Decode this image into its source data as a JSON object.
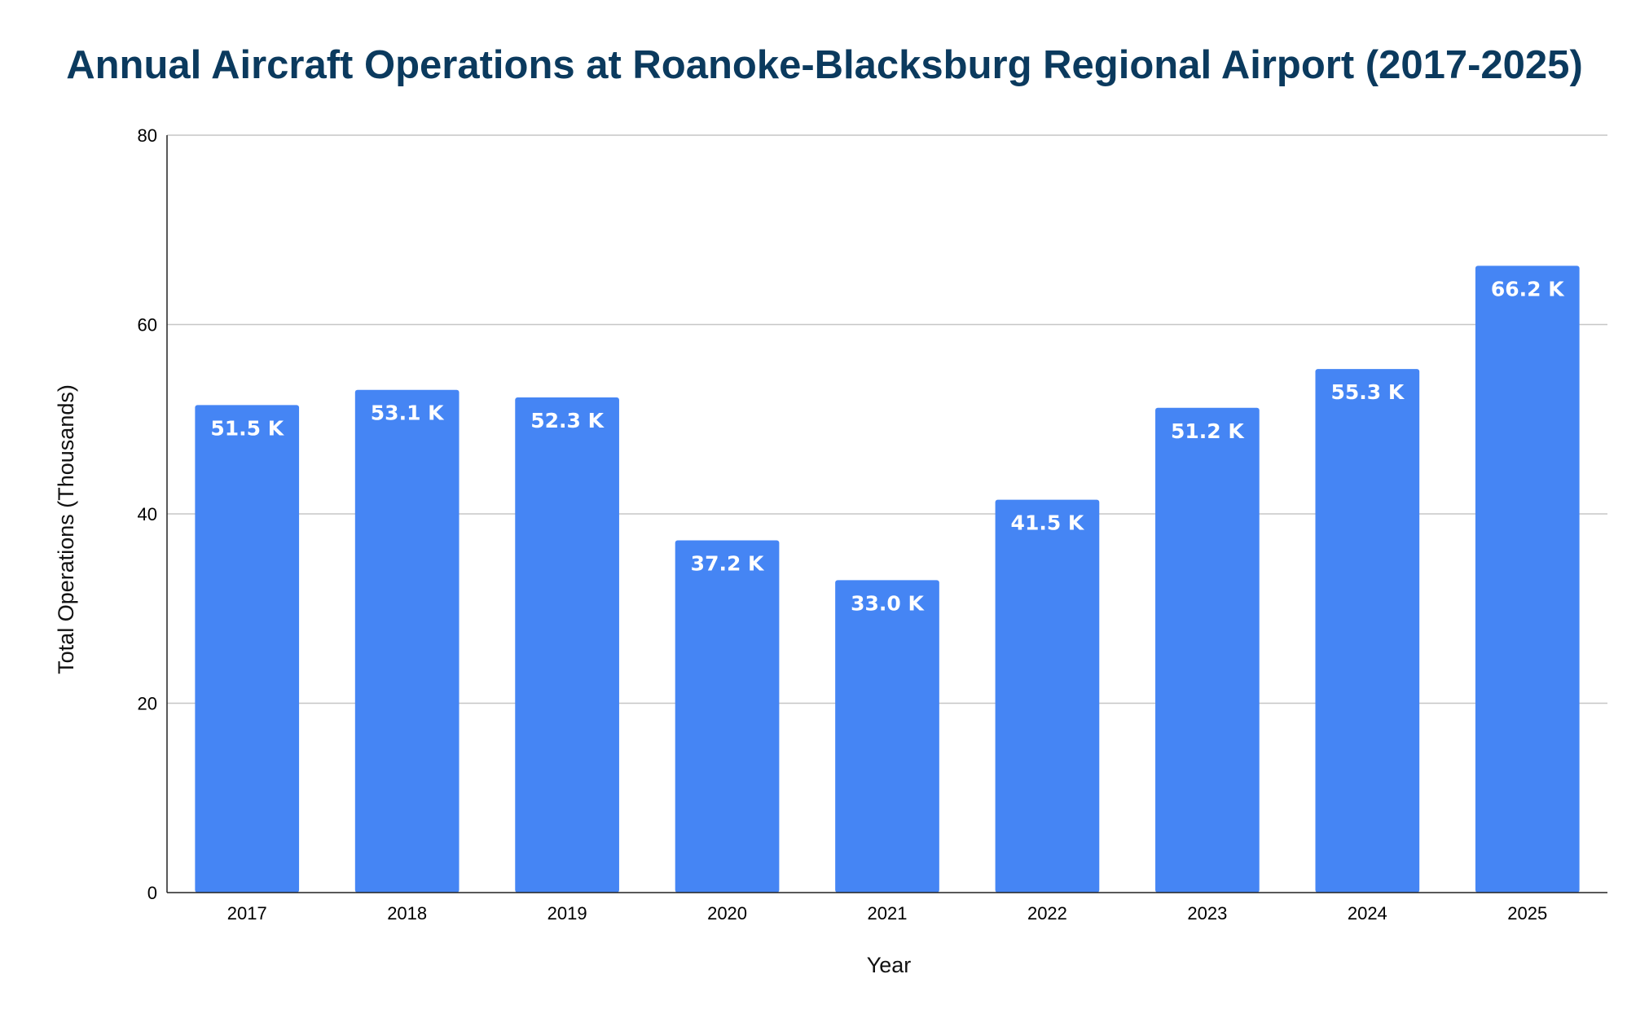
{
  "chart_data": {
    "type": "bar",
    "title": "Annual Aircraft Operations at Roanoke-Blacksburg Regional Airport (2017-2025)",
    "xlabel": "Year",
    "ylabel": "Total Operations (Thousands)",
    "categories": [
      "2017",
      "2018",
      "2019",
      "2020",
      "2021",
      "2022",
      "2023",
      "2024",
      "2025"
    ],
    "values": [
      51.5,
      53.1,
      52.3,
      37.2,
      33.0,
      41.5,
      51.2,
      55.3,
      66.2
    ],
    "data_labels": [
      "51.5 K",
      "53.1 K",
      "52.3 K",
      "37.2 K",
      "33.0 K",
      "41.5 K",
      "51.2 K",
      "55.3 K",
      "66.2 K"
    ],
    "ylim": [
      0,
      80
    ],
    "yticks": [
      0,
      20,
      40,
      60,
      80
    ],
    "grid": true,
    "bar_color": "#4585f4",
    "title_color": "#0b3a5e"
  }
}
